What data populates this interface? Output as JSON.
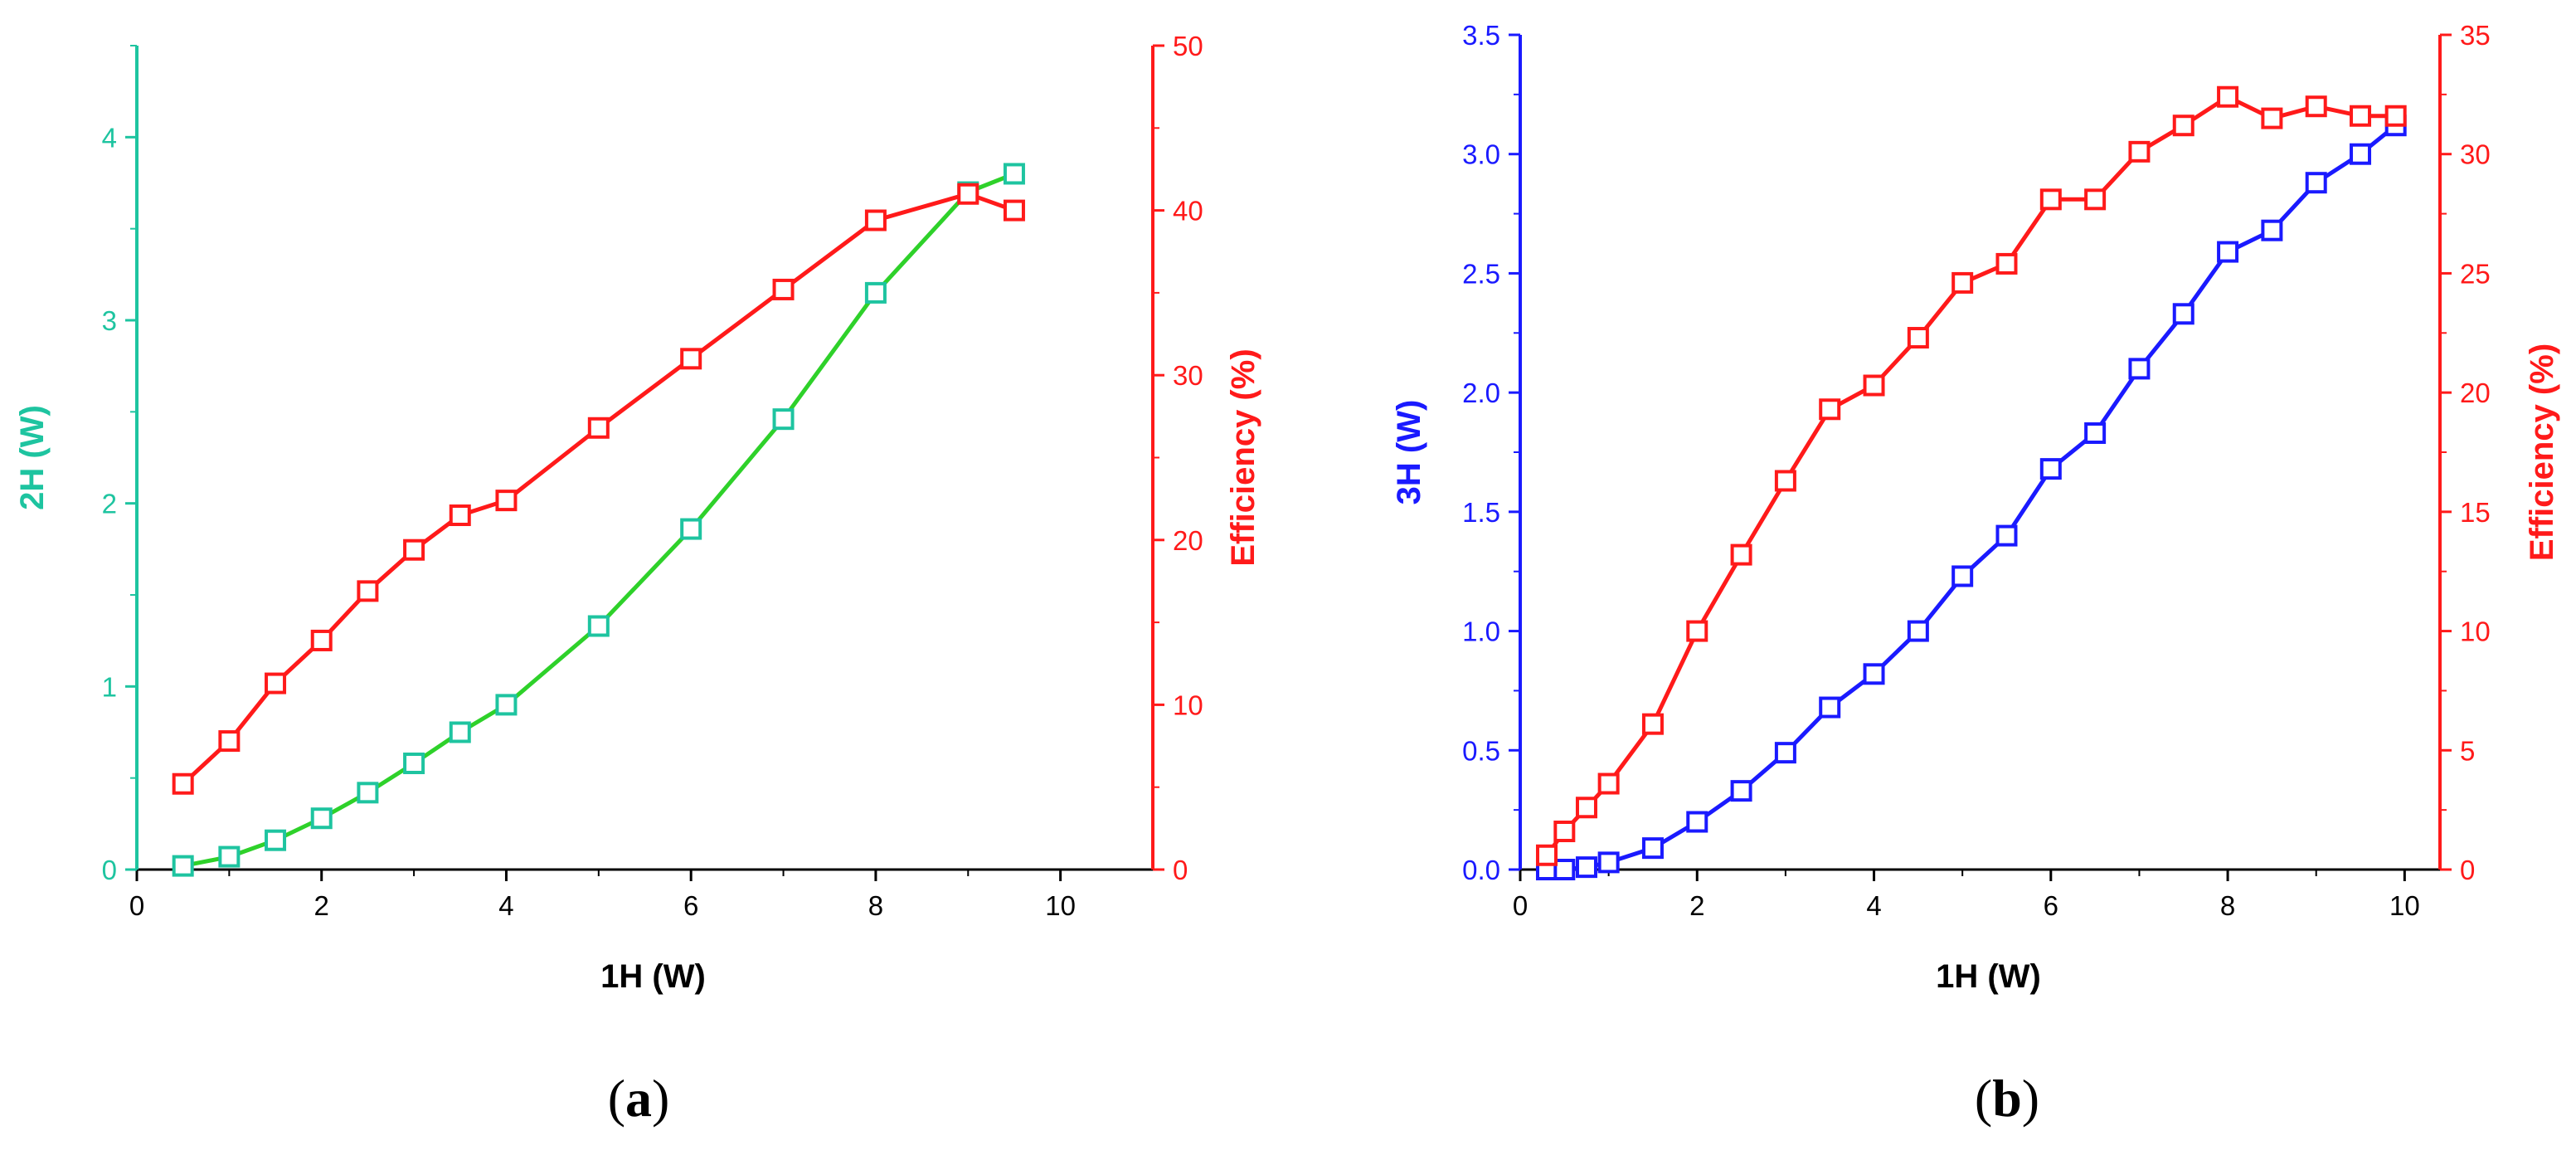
{
  "chart_data": [
    {
      "id": "a",
      "panel_label": "a",
      "type": "line",
      "xlabel": "1H (W)",
      "ylabel": "2H (W)",
      "ylabel_right": "Efficiency (%)",
      "xlim": [
        0,
        11
      ],
      "ylim": [
        0,
        4.5
      ],
      "ylim_right": [
        0,
        50
      ],
      "x_ticks": [
        "0",
        "2",
        "4",
        "6",
        "8",
        "10"
      ],
      "y_ticks": [
        "0",
        "1",
        "2",
        "3",
        "4"
      ],
      "y_right_ticks": [
        "0",
        "10",
        "20",
        "30",
        "40",
        "50"
      ],
      "colors": {
        "left": "#1ec4a0",
        "left_line": "#2ed12a",
        "right": "#ff1a1a"
      },
      "series": [
        {
          "axis": "left",
          "x": [
            0.5,
            1,
            1.5,
            2,
            2.5,
            3,
            3.5,
            4,
            5,
            6,
            7,
            8,
            9,
            9.5
          ],
          "values": [
            0.02,
            0.07,
            0.16,
            0.28,
            0.42,
            0.58,
            0.75,
            0.9,
            1.33,
            1.86,
            2.46,
            3.15,
            3.7,
            3.8
          ]
        },
        {
          "axis": "right",
          "x": [
            0.5,
            1,
            1.5,
            2,
            2.5,
            3,
            3.5,
            4,
            5,
            6,
            7,
            8,
            9,
            9.5
          ],
          "values": [
            5.2,
            7.8,
            11.3,
            13.9,
            16.9,
            19.4,
            21.5,
            22.4,
            26.8,
            31.0,
            35.2,
            39.4,
            41.0,
            40.0
          ]
        }
      ]
    },
    {
      "id": "b",
      "panel_label": "b",
      "type": "line",
      "xlabel": "1H (W)",
      "ylabel": "3H (W)",
      "ylabel_right": "Efficiency (%)",
      "xlim": [
        0,
        10.4
      ],
      "ylim": [
        0,
        3.5
      ],
      "ylim_right": [
        0,
        35
      ],
      "x_ticks": [
        "0",
        "2",
        "4",
        "6",
        "8",
        "10"
      ],
      "y_ticks": [
        "0.0",
        "0.5",
        "1.0",
        "1.5",
        "2.0",
        "2.5",
        "3.0",
        "3.5"
      ],
      "y_right_ticks": [
        "0",
        "5",
        "10",
        "15",
        "20",
        "25",
        "30",
        "35"
      ],
      "colors": {
        "left": "#1a1aff",
        "left_line": "#1a1aff",
        "right": "#ff1a1a"
      },
      "series": [
        {
          "axis": "left",
          "x": [
            0.3,
            0.5,
            0.75,
            1,
            1.5,
            2,
            2.5,
            3,
            3.5,
            4,
            4.5,
            5,
            5.5,
            6,
            6.5,
            7,
            7.5,
            8,
            8.5,
            9,
            9.5,
            9.9
          ],
          "values": [
            0.0,
            0.0,
            0.01,
            0.03,
            0.09,
            0.2,
            0.33,
            0.49,
            0.68,
            0.82,
            1.0,
            1.23,
            1.4,
            1.68,
            1.83,
            2.1,
            2.33,
            2.59,
            2.68,
            2.88,
            3.0,
            3.12
          ]
        },
        {
          "axis": "right",
          "x": [
            0.3,
            0.5,
            0.75,
            1,
            1.5,
            2,
            2.5,
            3,
            3.5,
            4,
            4.5,
            5,
            5.5,
            6,
            6.5,
            7,
            7.5,
            8,
            8.5,
            9,
            9.5,
            9.9
          ],
          "values": [
            0.6,
            1.6,
            2.6,
            3.6,
            6.1,
            10.0,
            13.2,
            16.3,
            19.3,
            20.3,
            22.3,
            24.6,
            25.4,
            28.1,
            28.1,
            30.1,
            31.2,
            32.4,
            31.5,
            32.0,
            31.6,
            31.6
          ]
        }
      ]
    }
  ]
}
